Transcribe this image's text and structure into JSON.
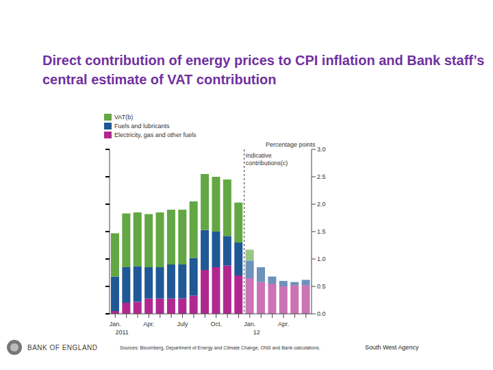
{
  "chart_data": {
    "type": "bar",
    "stacked": true,
    "grid": false,
    "title": "Direct contribution of energy prices to CPI inflation and Bank staff’s central estimate of VAT contribution",
    "ylabel": "Percentage points",
    "categories": [
      "Jan.",
      null,
      null,
      "Apr.",
      null,
      null,
      "July",
      null,
      null,
      "Oct.",
      null,
      null,
      "Jan.",
      null,
      null,
      "Apr.",
      null,
      null
    ],
    "x_groups": [
      "2011",
      "12"
    ],
    "series": [
      {
        "name": "VAT(b)",
        "color": "#62a744",
        "values": [
          0.79,
          0.98,
          0.98,
          0.97,
          1.0,
          1.0,
          1.0,
          1.03,
          1.02,
          1.0,
          1.03,
          0.73,
          0.2,
          0,
          0,
          0,
          0,
          0
        ]
      },
      {
        "name": "Fuels and lubricants",
        "color": "#1f5896",
        "values": [
          0.63,
          0.65,
          0.65,
          0.57,
          0.57,
          0.62,
          0.62,
          0.69,
          0.73,
          0.65,
          0.54,
          0.6,
          0.32,
          0.27,
          0.13,
          0.1,
          0.06,
          0.1
        ]
      },
      {
        "name": "Electricity, gas and other fuels",
        "color": "#b0288f",
        "values": [
          0.05,
          0.2,
          0.22,
          0.28,
          0.28,
          0.28,
          0.28,
          0.33,
          0.8,
          0.85,
          0.88,
          0.7,
          0.65,
          0.58,
          0.55,
          0.5,
          0.52,
          0.52
        ]
      }
    ],
    "indicative_from_index": 12,
    "annotations": [
      "Indicative contributions(c)"
    ],
    "ylim": [
      0,
      3
    ],
    "yticks": [
      {
        "value": 0,
        "label": "0.0"
      },
      {
        "value": 0.5,
        "label": "0.5"
      },
      {
        "value": 1,
        "label": "1.0"
      },
      {
        "value": 1.5,
        "label": "1.5"
      },
      {
        "value": 2,
        "label": "2.0"
      },
      {
        "value": 2.5,
        "label": "2.5"
      },
      {
        "value": 3,
        "label": "3.0"
      }
    ],
    "source": "Sources: Bloomberg, Department of Energy and Climate Change, ONS and Bank calculations.",
    "footer_left": "BANK OF ENGLAND",
    "footer_right": "South West Agency"
  }
}
